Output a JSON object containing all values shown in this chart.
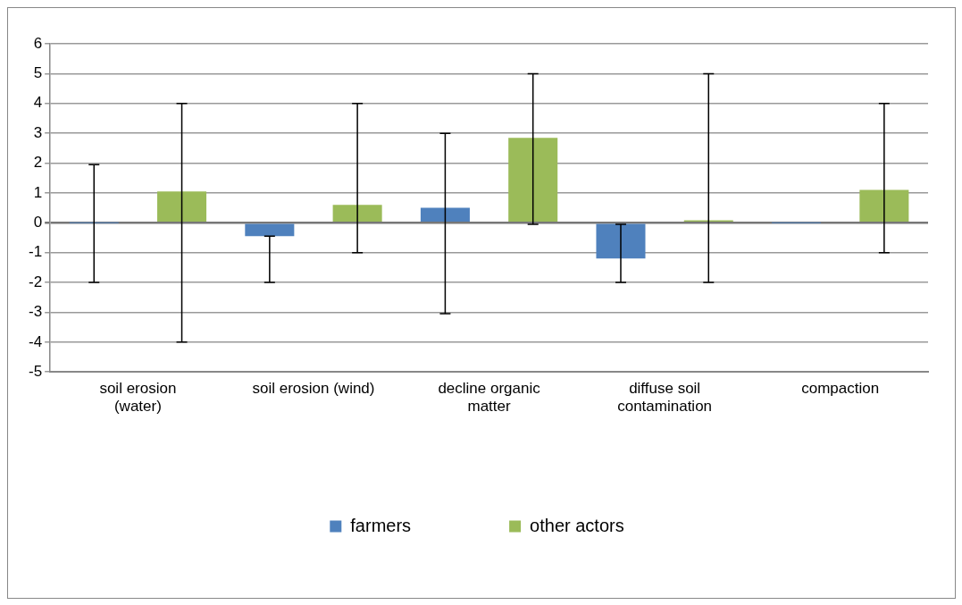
{
  "chart_data": {
    "type": "bar",
    "categories": [
      "soil erosion (water)",
      "soil erosion (wind)",
      "decline organic matter",
      "diffuse soil contamination",
      "compaction"
    ],
    "series": [
      {
        "name": "farmers",
        "color": "#4f81bd",
        "values": [
          0,
          -0.45,
          0.5,
          -1.2,
          0
        ],
        "errors": [
          [
            -2,
            1.95
          ],
          [
            -2,
            -0.45
          ],
          [
            -3.05,
            3
          ],
          [
            -2,
            -0.05
          ],
          null
        ]
      },
      {
        "name": "other actors",
        "color": "#9bbb59",
        "values": [
          1.05,
          0.6,
          2.85,
          0.08,
          1.1
        ],
        "errors": [
          [
            -4,
            4
          ],
          [
            -1,
            4
          ],
          [
            -0.05,
            5
          ],
          [
            -2,
            5
          ],
          [
            -1,
            4
          ]
        ]
      }
    ],
    "ylim": [
      -5,
      6
    ],
    "yticks": [
      -5,
      -4,
      -3,
      -2,
      -1,
      0,
      1,
      2,
      3,
      4,
      5,
      6
    ],
    "grid": "y",
    "legend": "bottom"
  }
}
